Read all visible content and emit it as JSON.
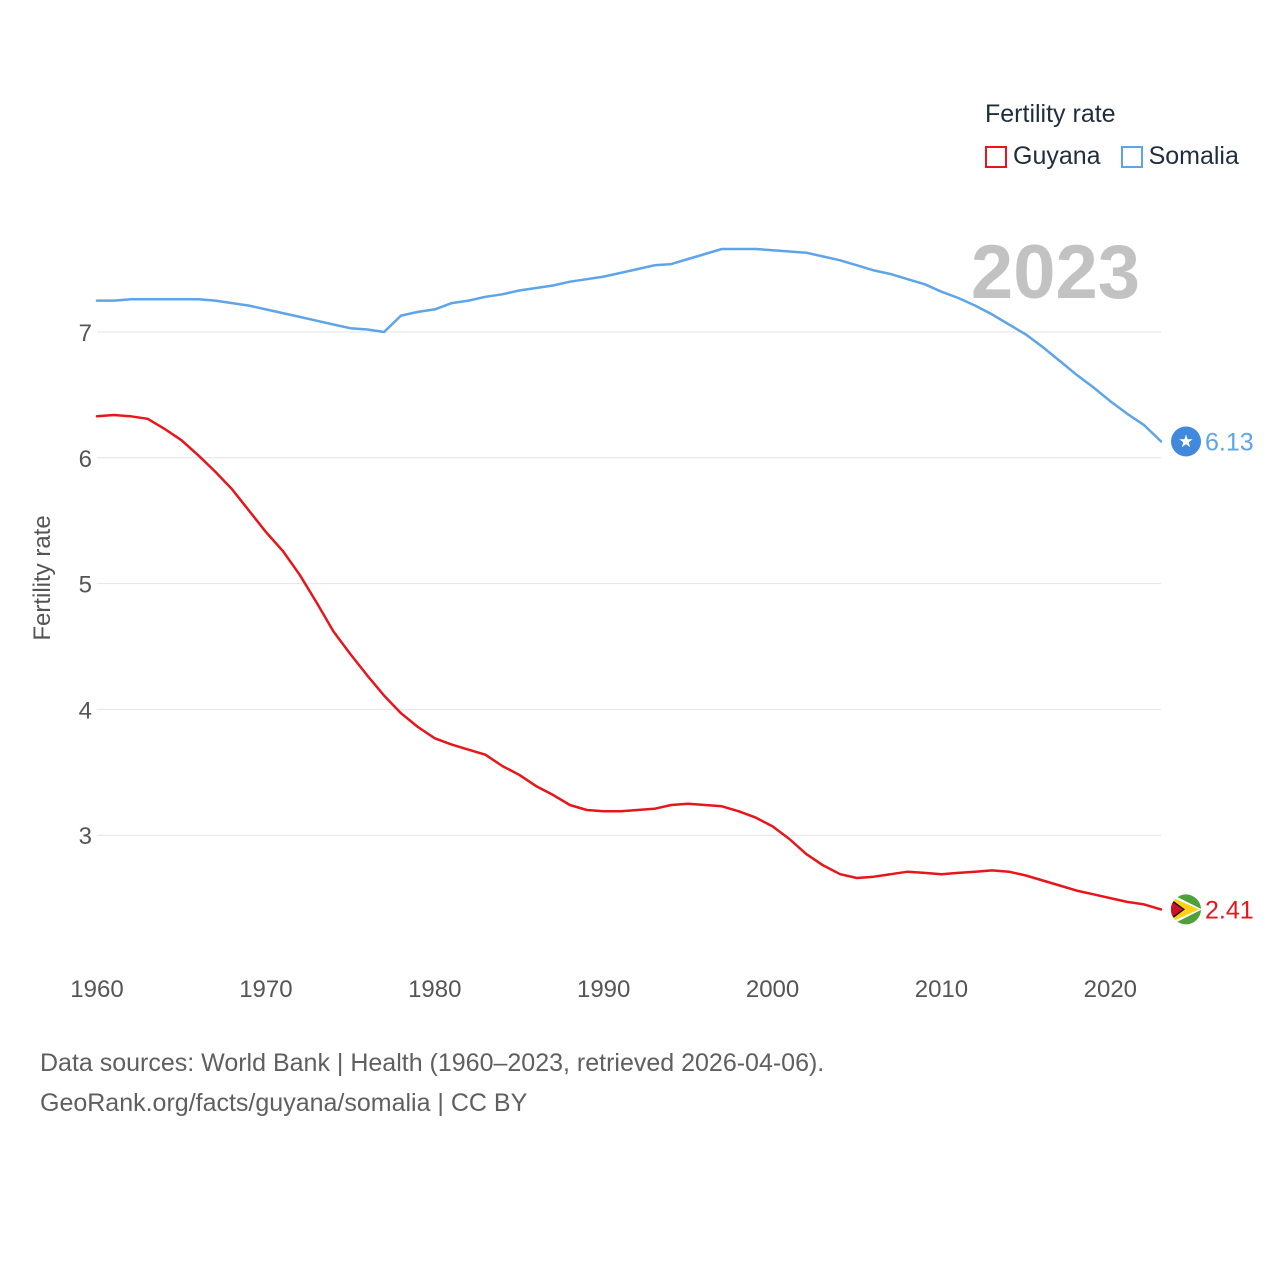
{
  "chart_data": {
    "type": "line",
    "ylabel": "Fertility rate",
    "xlabel": "",
    "year_label": "2023",
    "xlim": [
      1960,
      2023
    ],
    "ylim": [
      2.0,
      8.0
    ],
    "x_ticks": [
      1960,
      1970,
      1980,
      1990,
      2000,
      2010,
      2020
    ],
    "y_ticks": [
      3,
      4,
      5,
      6,
      7
    ],
    "grid": true,
    "legend_title": "Fertility rate",
    "x": [
      1960,
      1961,
      1962,
      1963,
      1964,
      1965,
      1966,
      1967,
      1968,
      1969,
      1970,
      1971,
      1972,
      1973,
      1974,
      1975,
      1976,
      1977,
      1978,
      1979,
      1980,
      1981,
      1982,
      1983,
      1984,
      1985,
      1986,
      1987,
      1988,
      1989,
      1990,
      1991,
      1992,
      1993,
      1994,
      1995,
      1996,
      1997,
      1998,
      1999,
      2000,
      2001,
      2002,
      2003,
      2004,
      2005,
      2006,
      2007,
      2008,
      2009,
      2010,
      2011,
      2012,
      2013,
      2014,
      2015,
      2016,
      2017,
      2018,
      2019,
      2020,
      2021,
      2022,
      2023
    ],
    "series": [
      {
        "name": "Guyana",
        "color": "#e8151b",
        "end_label": "2.41",
        "marker_icon": "guyana-flag-icon",
        "values": [
          6.33,
          6.34,
          6.33,
          6.31,
          6.23,
          6.14,
          6.02,
          5.89,
          5.75,
          5.58,
          5.41,
          5.26,
          5.07,
          4.85,
          4.62,
          4.44,
          4.27,
          4.11,
          3.97,
          3.86,
          3.77,
          3.72,
          3.68,
          3.64,
          3.55,
          3.48,
          3.39,
          3.32,
          3.24,
          3.2,
          3.19,
          3.19,
          3.2,
          3.21,
          3.24,
          3.25,
          3.24,
          3.23,
          3.19,
          3.14,
          3.07,
          2.97,
          2.85,
          2.76,
          2.69,
          2.66,
          2.67,
          2.69,
          2.71,
          2.7,
          2.69,
          2.7,
          2.71,
          2.72,
          2.71,
          2.68,
          2.64,
          2.6,
          2.56,
          2.53,
          2.5,
          2.47,
          2.45,
          2.41
        ]
      },
      {
        "name": "Somalia",
        "color": "#5ea4e8",
        "end_label": "6.13",
        "marker_icon": "somalia-flag-icon",
        "values": [
          7.25,
          7.25,
          7.26,
          7.26,
          7.26,
          7.26,
          7.26,
          7.25,
          7.23,
          7.21,
          7.18,
          7.15,
          7.12,
          7.09,
          7.06,
          7.03,
          7.02,
          7.0,
          7.13,
          7.16,
          7.18,
          7.23,
          7.25,
          7.28,
          7.3,
          7.33,
          7.35,
          7.37,
          7.4,
          7.42,
          7.44,
          7.47,
          7.5,
          7.53,
          7.54,
          7.58,
          7.62,
          7.66,
          7.66,
          7.66,
          7.65,
          7.64,
          7.63,
          7.6,
          7.57,
          7.53,
          7.49,
          7.46,
          7.42,
          7.38,
          7.32,
          7.27,
          7.21,
          7.14,
          7.06,
          6.98,
          6.88,
          6.77,
          6.66,
          6.56,
          6.45,
          6.35,
          6.26,
          6.13
        ]
      }
    ]
  },
  "source": {
    "line1": "Data sources: World Bank | Health (1960–2023, retrieved 2026-04-06).",
    "line2": "GeoRank.org/facts/guyana/somalia | CC BY"
  }
}
